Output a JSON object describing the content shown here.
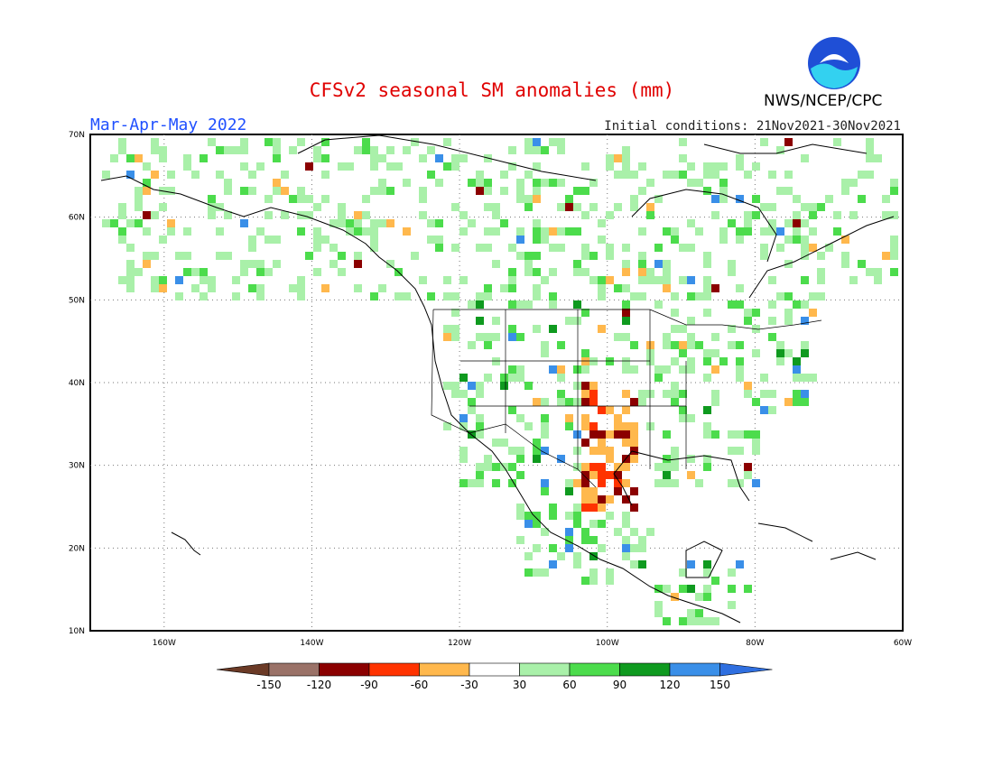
{
  "header": {
    "title": "CFSv2 seasonal SM anomalies (mm)",
    "season": "Mar-Apr-May 2022",
    "initial_conditions": "Initial conditions: 21Nov2021-30Nov2021",
    "agency": "NWS/NCEP/CPC",
    "logo_text": "NOAA"
  },
  "map": {
    "lat_labels": [
      "70N",
      "60N",
      "50N",
      "40N",
      "30N",
      "20N",
      "10N"
    ],
    "lon_labels": [
      "160W",
      "140W",
      "120W",
      "100W",
      "80W",
      "60W"
    ],
    "lon_range": [
      -170,
      -60
    ],
    "lat_range": [
      10,
      70
    ],
    "grid": "dotted"
  },
  "colorbar": {
    "labels": [
      "-150",
      "-120",
      "-90",
      "-60",
      "-30",
      "30",
      "60",
      "90",
      "120",
      "150"
    ],
    "colors": [
      "#6b3a26",
      "#9a7268",
      "#8b0000",
      "#ff3300",
      "#ffb84d",
      "#ffffff",
      "#a9f0a9",
      "#4cdc4c",
      "#0f9a1f",
      "#3a8fe8",
      "#2f6fe0"
    ]
  }
}
